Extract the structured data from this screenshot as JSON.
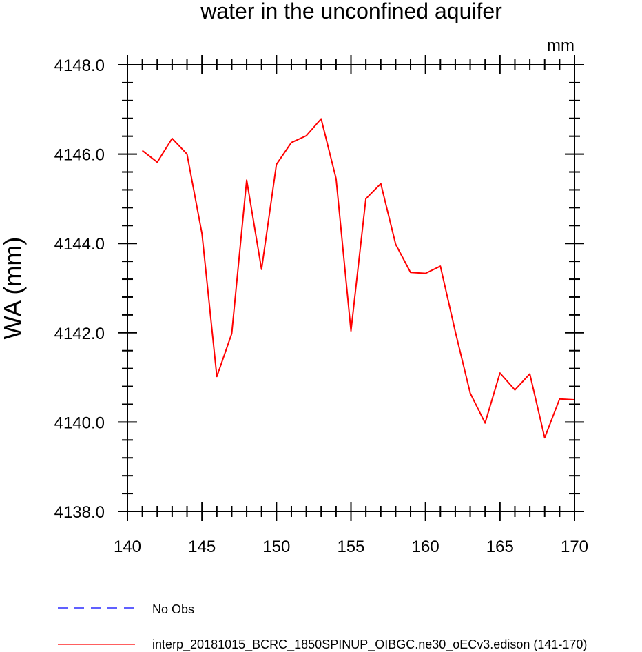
{
  "chart_data": {
    "type": "line",
    "title": "water in the unconfined aquifer",
    "units_label": "mm",
    "ylabel": "WA  (mm)",
    "xlabel": "",
    "xlim": [
      140,
      170
    ],
    "ylim": [
      4138.0,
      4148.0
    ],
    "x_ticks": [
      140,
      145,
      150,
      155,
      160,
      165,
      170
    ],
    "y_ticks": [
      4138.0,
      4140.0,
      4142.0,
      4144.0,
      4146.0,
      4148.0
    ],
    "y_tick_labels": [
      "4138.0",
      "4140.0",
      "4142.0",
      "4144.0",
      "4146.0",
      "4148.0"
    ],
    "series": [
      {
        "name": "interp_20181015_BCRC_1850SPINUP_OIBGC.ne30_oECv3.edison (141-170)",
        "color": "#ff0000",
        "style": "solid",
        "x": [
          141,
          142,
          143,
          144,
          145,
          146,
          147,
          148,
          149,
          150,
          151,
          152,
          153,
          154,
          155,
          156,
          157,
          158,
          159,
          160,
          161,
          162,
          163,
          164,
          165,
          166,
          167,
          168,
          169,
          170
        ],
        "y": [
          4146.08,
          4145.82,
          4146.35,
          4146.0,
          4144.22,
          4141.02,
          4141.98,
          4145.42,
          4143.42,
          4145.77,
          4146.26,
          4146.41,
          4146.79,
          4145.45,
          4142.04,
          4145.0,
          4145.34,
          4143.98,
          4143.35,
          4143.33,
          4143.49,
          4142.03,
          4140.65,
          4139.98,
          4141.1,
          4140.72,
          4141.08,
          4139.65,
          4140.52,
          4140.5
        ]
      }
    ],
    "legend": [
      {
        "label": "No Obs",
        "color": "#0000ff",
        "style": "dashed"
      },
      {
        "label": "interp_20181015_BCRC_1850SPINUP_OIBGC.ne30_oECv3.edison (141-170)",
        "color": "#ff0000",
        "style": "solid"
      }
    ]
  }
}
